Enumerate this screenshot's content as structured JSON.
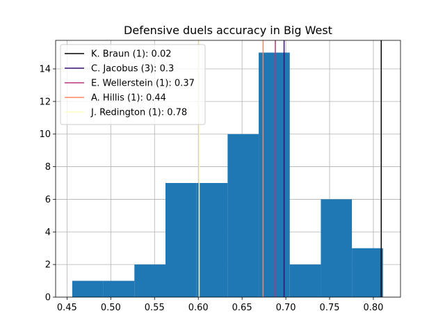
{
  "chart_data": {
    "type": "bar",
    "title": "Defensive duels accuracy in Big West",
    "xlabel": "",
    "ylabel": "",
    "xlim": [
      0.437,
      0.831
    ],
    "ylim": [
      0,
      15.75
    ],
    "grid": true,
    "legend_position": "top-left",
    "xticks": [
      "0.45",
      "0.50",
      "0.55",
      "0.60",
      "0.65",
      "0.70",
      "0.75",
      "0.80"
    ],
    "yticks": [
      "0",
      "2",
      "4",
      "6",
      "8",
      "10",
      "12",
      "14"
    ],
    "bar_color": "#1f77b4",
    "bins": [
      {
        "x0": 0.456,
        "x1": 0.4915,
        "count": 1
      },
      {
        "x0": 0.4915,
        "x1": 0.527,
        "count": 1
      },
      {
        "x0": 0.527,
        "x1": 0.5625,
        "count": 2
      },
      {
        "x0": 0.5625,
        "x1": 0.598,
        "count": 7
      },
      {
        "x0": 0.598,
        "x1": 0.6335,
        "count": 7
      },
      {
        "x0": 0.6335,
        "x1": 0.669,
        "count": 10
      },
      {
        "x0": 0.669,
        "x1": 0.7045,
        "count": 15
      },
      {
        "x0": 0.7045,
        "x1": 0.74,
        "count": 2
      },
      {
        "x0": 0.74,
        "x1": 0.7755,
        "count": 6
      },
      {
        "x0": 0.7755,
        "x1": 0.811,
        "count": 3
      }
    ],
    "reference_lines": [
      {
        "label": "K. Braun (1): 0.02",
        "x": 0.809,
        "color": "#000000"
      },
      {
        "label": "C. Jacobus (3): 0.3",
        "x": 0.698,
        "color": "#3b0f70"
      },
      {
        "label": "E. Wellerstein (1): 0.37",
        "x": 0.688,
        "color": "#b5367a"
      },
      {
        "label": "A. Hillis (1): 0.44",
        "x": 0.674,
        "color": "#fb8761"
      },
      {
        "label": "J. Redington (1): 0.78",
        "x": 0.601,
        "color": "#fcfdbf"
      }
    ]
  }
}
